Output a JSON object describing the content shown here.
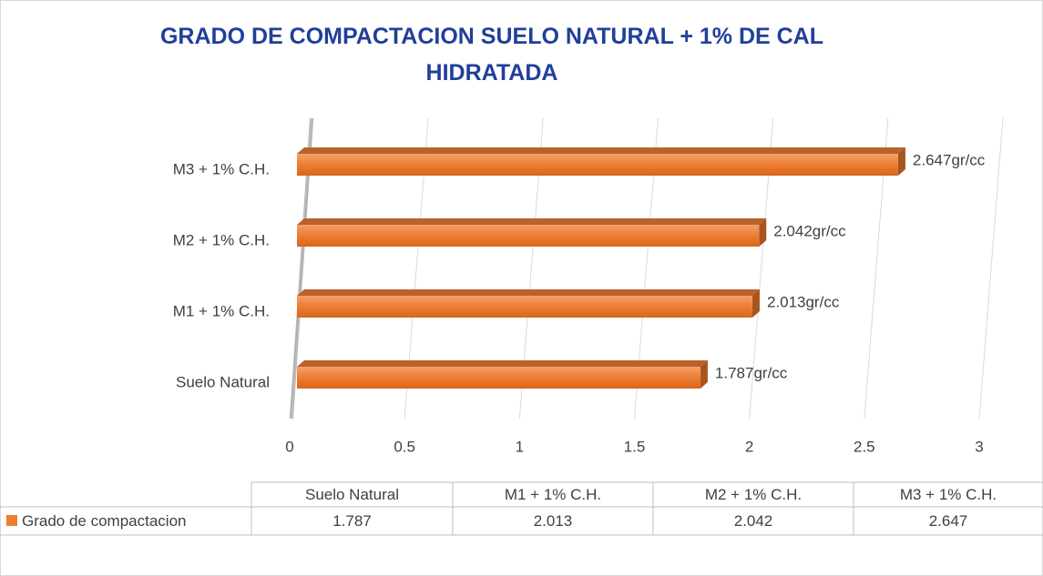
{
  "chart_data": {
    "type": "bar",
    "orientation": "horizontal",
    "title": "GRADO DE COMPACTACION SUELO NATURAL + 1% DE CAL HIDRATADA",
    "categories": [
      "Suelo Natural",
      "M1 + 1% C.H.",
      "M2 + 1% C.H.",
      "M3 + 1% C.H."
    ],
    "series": [
      {
        "name": "Grado de compactacion",
        "color": "#ed7d31",
        "values": [
          1.787,
          2.013,
          2.042,
          2.647
        ],
        "value_labels": [
          "1.787gr/cc",
          "2.013gr/cc",
          "2.042gr/cc",
          "2.647gr/cc"
        ]
      }
    ],
    "xlim": [
      0,
      3
    ],
    "xticks": [
      0,
      0.5,
      1,
      1.5,
      2,
      2.5,
      3
    ],
    "grid": true,
    "data_table": true
  }
}
